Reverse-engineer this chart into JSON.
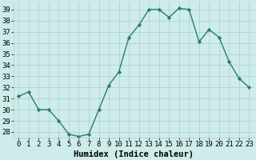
{
  "x": [
    0,
    1,
    2,
    3,
    4,
    5,
    6,
    7,
    8,
    9,
    10,
    11,
    12,
    13,
    14,
    15,
    16,
    17,
    18,
    19,
    20,
    21,
    22,
    23
  ],
  "y": [
    31.2,
    31.6,
    30.0,
    30.0,
    29.0,
    27.8,
    27.6,
    27.8,
    30.0,
    32.2,
    33.4,
    36.5,
    37.6,
    39.0,
    39.0,
    38.3,
    39.1,
    39.0,
    36.1,
    37.2,
    36.5,
    34.3,
    32.8,
    32.0
  ],
  "line_color": "#2a7d6e",
  "marker": "D",
  "marker_size": 2.2,
  "bg_color": "#ceecea",
  "grid_color": "#a8ceca",
  "xlabel": "Humidex (Indice chaleur)",
  "ylim": [
    27.5,
    39.7
  ],
  "yticks": [
    28,
    29,
    30,
    31,
    32,
    33,
    34,
    35,
    36,
    37,
    38,
    39
  ],
  "xticks": [
    0,
    1,
    2,
    3,
    4,
    5,
    6,
    7,
    8,
    9,
    10,
    11,
    12,
    13,
    14,
    15,
    16,
    17,
    18,
    19,
    20,
    21,
    22,
    23
  ],
  "xlabel_fontsize": 7.5,
  "tick_fontsize": 6.5,
  "linewidth": 1.0
}
